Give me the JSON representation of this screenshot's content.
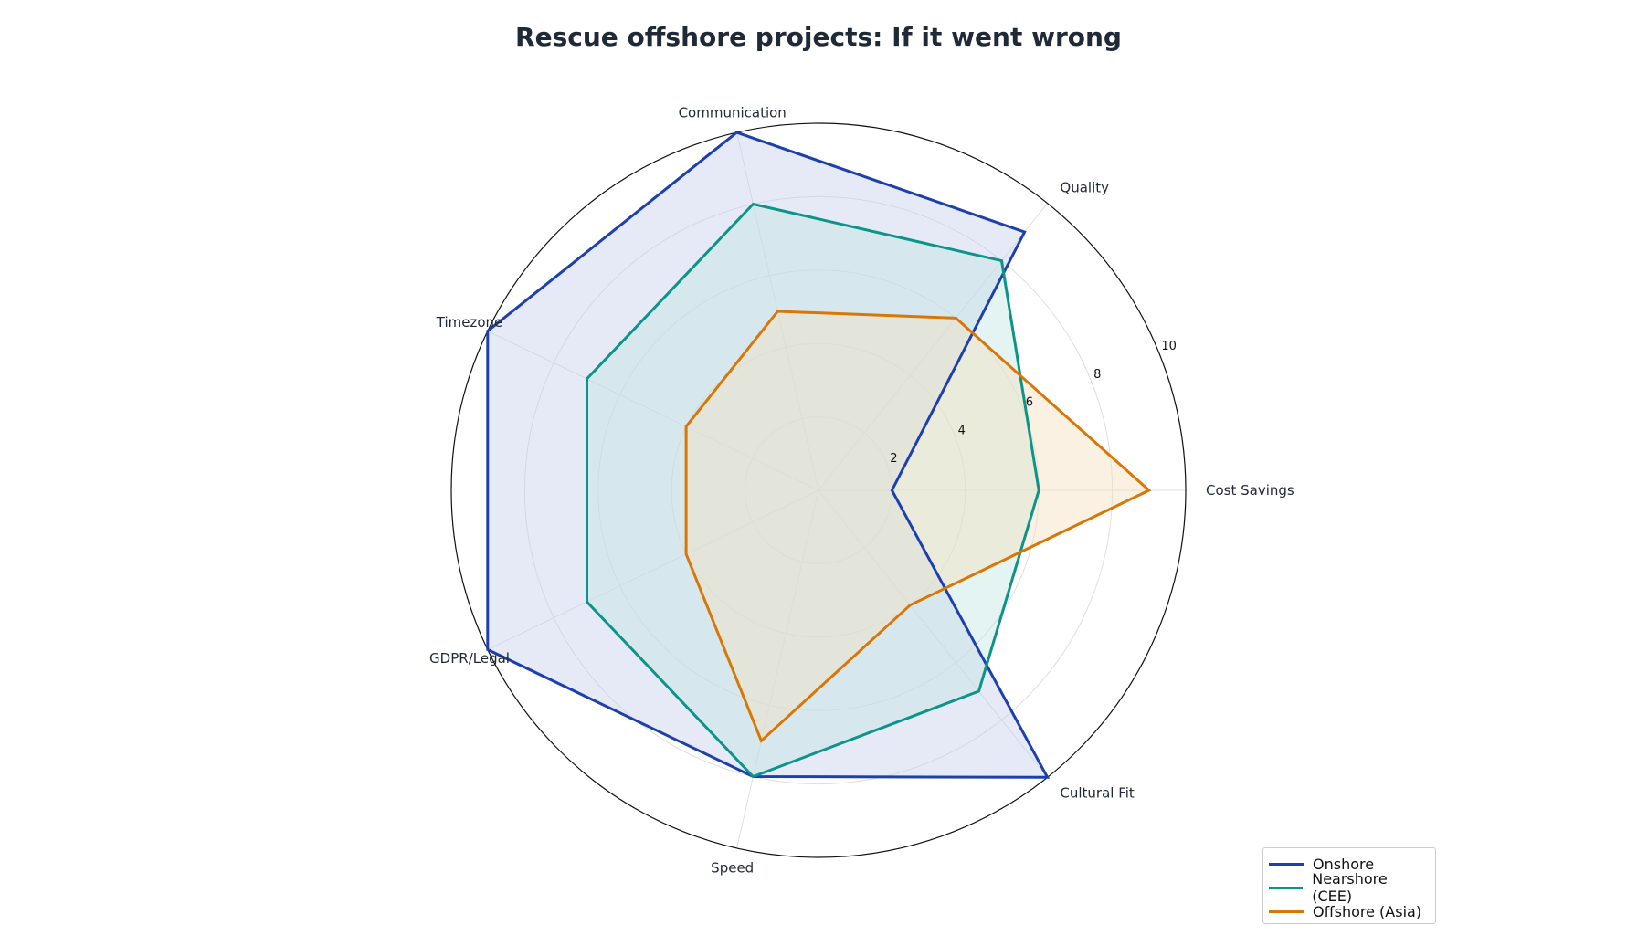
{
  "chart_data": {
    "type": "radar",
    "title": "Rescue offshore projects: If it went wrong",
    "axes": [
      "Cost Savings",
      "Quality",
      "Communication",
      "Timezone",
      "GDPR/Legal",
      "Speed",
      "Cultural Fit"
    ],
    "rlim": [
      0,
      10
    ],
    "rticks": [
      2,
      4,
      6,
      8,
      10
    ],
    "grid": true,
    "legend_position": "bottom-right",
    "series": [
      {
        "name": "Onshore",
        "color": "#1e40af",
        "fill": "#c7d0ee",
        "values": [
          2,
          9,
          10,
          10,
          10,
          8,
          10
        ]
      },
      {
        "name": "Nearshore (CEE)",
        "color": "#0d9488",
        "fill": "#c4e6e2",
        "values": [
          6,
          8,
          8,
          7,
          7,
          8,
          7
        ]
      },
      {
        "name": "Offshore (Asia)",
        "color": "#d97706",
        "fill": "#f5dfc2",
        "values": [
          9,
          6,
          5,
          4,
          4,
          7,
          4
        ]
      }
    ]
  }
}
